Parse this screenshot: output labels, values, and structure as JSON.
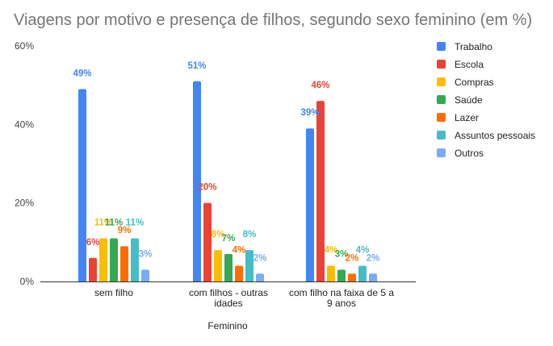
{
  "chart_data": {
    "type": "bar",
    "title": "Viagens por motivo e presença de filhos, segundo sexo feminino (em %)",
    "xlabel": "Feminino",
    "ylabel": "",
    "ylim": [
      0,
      60
    ],
    "yticks": [
      "0%",
      "20%",
      "40%",
      "60%"
    ],
    "ytick_values": [
      0,
      20,
      40,
      60
    ],
    "grid": false,
    "legend_position": "right",
    "categories": [
      [
        "sem filho"
      ],
      [
        "com filhos - outras",
        "idades"
      ],
      [
        "com filho na faixa de 5 a",
        "9 anos"
      ]
    ],
    "series": [
      {
        "name": "Trabalho",
        "color": "#4285F4",
        "values": [
          49,
          51,
          39
        ],
        "labels": [
          "49%",
          "51%",
          "39%"
        ]
      },
      {
        "name": "Escola",
        "color": "#EA4335",
        "values": [
          6,
          20,
          46
        ],
        "labels": [
          "6%",
          "20%",
          "46%"
        ]
      },
      {
        "name": "Compras",
        "color": "#FBBC04",
        "values": [
          11,
          8,
          4
        ],
        "labels": [
          "11%",
          "8%",
          "4%"
        ]
      },
      {
        "name": "Saúde",
        "color": "#34A853",
        "values": [
          11,
          7,
          3
        ],
        "labels": [
          "11%",
          "7%",
          "3%"
        ]
      },
      {
        "name": "Lazer",
        "color": "#FF6D01",
        "values": [
          9,
          4,
          2
        ],
        "labels": [
          "9%",
          "4%",
          "2%"
        ]
      },
      {
        "name": "Assuntos pessoais",
        "color": "#46BDC6",
        "values": [
          11,
          8,
          4
        ],
        "labels": [
          "11%",
          "8%",
          "4%"
        ]
      },
      {
        "name": "Outros",
        "color": "#7BAAF7",
        "values": [
          3,
          2,
          2
        ],
        "labels": [
          "3%",
          "2%",
          "2%"
        ]
      }
    ]
  }
}
